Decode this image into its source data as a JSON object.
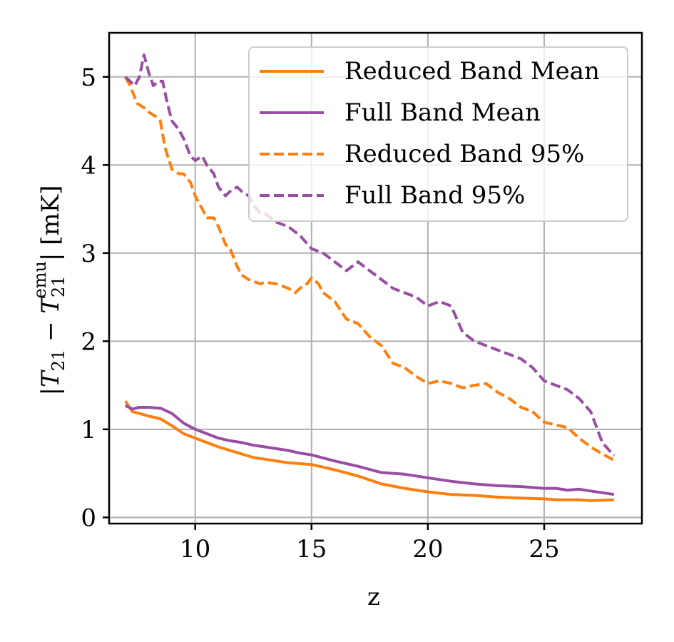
{
  "chart_data": {
    "type": "line",
    "title": "",
    "xlabel": "z",
    "ylabel": "|T21 − T21emu| [mK]",
    "ylabel_parts": {
      "pre": "|",
      "t1": "T",
      "s1": "21",
      "minus": " − ",
      "t2": "T",
      "s2": "21",
      "sup": "emu",
      "post": "| [mK]"
    },
    "xlim": [
      6.3,
      29.2
    ],
    "ylim": [
      -0.07,
      5.5
    ],
    "xticks": [
      10,
      15,
      20,
      25
    ],
    "yticks": [
      0,
      1,
      2,
      3,
      4,
      5
    ],
    "xtick_labels": [
      "10",
      "15",
      "20",
      "25"
    ],
    "ytick_labels": [
      "0",
      "1",
      "2",
      "3",
      "4",
      "5"
    ],
    "grid": true,
    "legend_position": "top-right",
    "series": [
      {
        "name": "Reduced Band Mean",
        "color": "#ff7f0e",
        "style": "solid",
        "x": [
          7.0,
          7.3,
          7.6,
          8.0,
          8.5,
          9.0,
          9.5,
          10.0,
          10.5,
          11.0,
          11.5,
          12.0,
          12.5,
          13.0,
          13.5,
          14.0,
          14.5,
          15.0,
          16.0,
          17.0,
          18.0,
          19.0,
          20.0,
          21.0,
          22.0,
          23.0,
          24.0,
          25.0,
          25.5,
          26.5,
          27.0,
          28.0
        ],
        "y": [
          1.32,
          1.2,
          1.18,
          1.15,
          1.12,
          1.04,
          0.95,
          0.9,
          0.85,
          0.8,
          0.76,
          0.72,
          0.68,
          0.66,
          0.64,
          0.62,
          0.61,
          0.6,
          0.54,
          0.47,
          0.38,
          0.33,
          0.29,
          0.26,
          0.25,
          0.23,
          0.22,
          0.21,
          0.2,
          0.2,
          0.19,
          0.2
        ]
      },
      {
        "name": "Full Band Mean",
        "color": "#984ea3",
        "style": "solid",
        "x": [
          7.0,
          7.3,
          7.6,
          8.0,
          8.5,
          9.0,
          9.5,
          10.0,
          10.5,
          11.0,
          11.5,
          12.0,
          12.5,
          13.0,
          13.5,
          14.0,
          14.5,
          15.0,
          16.0,
          17.0,
          18.0,
          19.0,
          20.0,
          21.0,
          22.0,
          23.0,
          24.0,
          25.0,
          25.5,
          26.0,
          26.5,
          27.0,
          28.0
        ],
        "y": [
          1.27,
          1.23,
          1.25,
          1.25,
          1.24,
          1.18,
          1.07,
          1.0,
          0.95,
          0.9,
          0.87,
          0.85,
          0.82,
          0.8,
          0.78,
          0.76,
          0.73,
          0.71,
          0.64,
          0.58,
          0.51,
          0.49,
          0.45,
          0.41,
          0.38,
          0.36,
          0.35,
          0.33,
          0.33,
          0.31,
          0.32,
          0.3,
          0.26
        ]
      },
      {
        "name": "Reduced Band 95%",
        "color": "#ff7f0e",
        "style": "dashed",
        "x": [
          7.0,
          7.2,
          7.5,
          7.8,
          8.0,
          8.3,
          8.5,
          8.7,
          9.0,
          9.3,
          9.5,
          9.8,
          10.0,
          10.3,
          10.5,
          10.8,
          11.0,
          11.3,
          11.5,
          11.8,
          12.0,
          12.3,
          12.5,
          12.8,
          13.0,
          13.5,
          14.0,
          14.3,
          14.5,
          14.8,
          15.0,
          15.3,
          15.5,
          16.0,
          16.5,
          17.0,
          17.5,
          18.0,
          18.5,
          19.0,
          19.5,
          20.0,
          20.5,
          21.0,
          21.5,
          22.0,
          22.5,
          23.0,
          23.5,
          24.0,
          24.5,
          25.0,
          25.5,
          26.0,
          26.5,
          27.0,
          27.5,
          28.0
        ],
        "y": [
          5.0,
          4.9,
          4.7,
          4.65,
          4.6,
          4.55,
          4.5,
          4.2,
          3.95,
          3.9,
          3.9,
          3.8,
          3.65,
          3.5,
          3.4,
          3.4,
          3.3,
          3.1,
          3.05,
          2.85,
          2.75,
          2.7,
          2.68,
          2.65,
          2.67,
          2.65,
          2.6,
          2.55,
          2.6,
          2.65,
          2.72,
          2.65,
          2.55,
          2.45,
          2.25,
          2.2,
          2.05,
          1.95,
          1.75,
          1.7,
          1.6,
          1.52,
          1.55,
          1.52,
          1.47,
          1.5,
          1.52,
          1.42,
          1.35,
          1.25,
          1.2,
          1.08,
          1.05,
          1.02,
          0.9,
          0.8,
          0.72,
          0.65
        ]
      },
      {
        "name": "Full Band 95%",
        "color": "#984ea3",
        "style": "dashed",
        "x": [
          7.0,
          7.2,
          7.4,
          7.6,
          7.8,
          8.0,
          8.2,
          8.4,
          8.6,
          8.8,
          9.0,
          9.3,
          9.5,
          9.8,
          10.0,
          10.3,
          10.5,
          10.8,
          11.0,
          11.3,
          11.5,
          11.8,
          12.0,
          12.3,
          12.5,
          12.8,
          13.0,
          13.5,
          14.0,
          14.5,
          15.0,
          15.5,
          16.0,
          16.5,
          17.0,
          17.5,
          18.0,
          18.5,
          19.0,
          19.5,
          20.0,
          20.5,
          21.0,
          21.5,
          22.0,
          22.5,
          23.0,
          23.5,
          24.0,
          24.5,
          25.0,
          25.5,
          26.0,
          26.5,
          27.0,
          27.5,
          28.0
        ],
        "y": [
          5.0,
          4.95,
          4.9,
          5.0,
          5.25,
          5.05,
          4.9,
          4.95,
          4.95,
          4.7,
          4.5,
          4.4,
          4.3,
          4.1,
          4.05,
          4.1,
          4.0,
          3.9,
          3.75,
          3.65,
          3.7,
          3.75,
          3.7,
          3.65,
          3.55,
          3.45,
          3.45,
          3.35,
          3.3,
          3.2,
          3.05,
          3.0,
          2.9,
          2.8,
          2.9,
          2.8,
          2.7,
          2.6,
          2.55,
          2.5,
          2.4,
          2.45,
          2.4,
          2.1,
          2.0,
          1.95,
          1.9,
          1.85,
          1.8,
          1.7,
          1.55,
          1.5,
          1.45,
          1.35,
          1.2,
          0.85,
          0.7
        ]
      }
    ]
  }
}
